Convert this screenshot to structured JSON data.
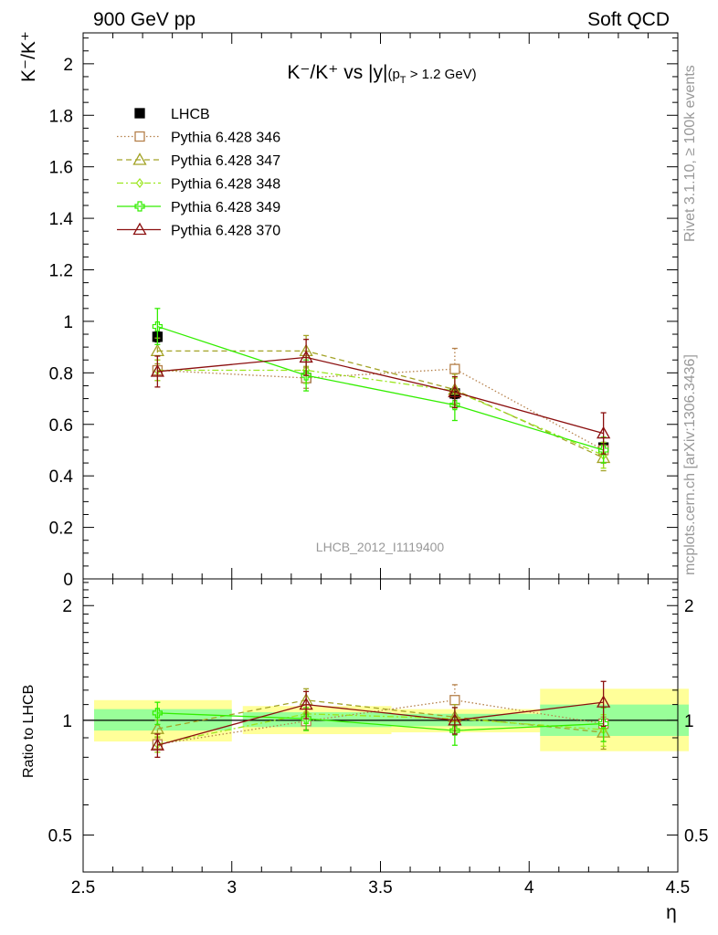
{
  "header": {
    "left": "900 GeV pp",
    "right": "Soft QCD"
  },
  "side_labels": {
    "rivet": "Rivet 3.1.10, ≥ 100k events",
    "source": "mcplots.cern.ch [arXiv:1306.3436]"
  },
  "chart_data": [
    {
      "type": "line",
      "panel": "main",
      "title_main": "K⁻/K⁺ vs |y|",
      "title_cut": "(p",
      "title_cut_sub": "T",
      "title_cut_rest": " > 1.2 GeV)",
      "ylabel": "K⁻/K⁺",
      "xlabel": "η",
      "analysis_tag": "LHCB_2012_I1119400",
      "xlim": [
        2.5,
        4.5
      ],
      "ylim": [
        0,
        2.12
      ],
      "y_ticks": [
        "0",
        "0.2",
        "0.4",
        "0.6",
        "0.8",
        "1",
        "1.2",
        "1.4",
        "1.6",
        "1.8",
        "2"
      ],
      "x": [
        2.75,
        3.25,
        3.75,
        4.25
      ],
      "x_edges": [
        [
          2.5,
          3.0
        ],
        [
          3.0,
          3.5
        ],
        [
          3.5,
          4.0
        ],
        [
          4.0,
          4.5
        ]
      ],
      "series": [
        {
          "name": "LHCB",
          "color": "#000000",
          "style": "data",
          "marker": "filled-square",
          "values": [
            0.94,
            0.78,
            0.72,
            0.51
          ],
          "errors": [
            0.02,
            0.02,
            0.02,
            0.02
          ]
        },
        {
          "name": "Pythia 6.428 346",
          "color": "#b5804a",
          "style": "dotted",
          "marker": "open-square",
          "values": [
            0.81,
            0.78,
            0.815,
            0.5
          ],
          "errors": [
            0.04,
            0.04,
            0.08,
            0.05
          ]
        },
        {
          "name": "Pythia 6.428 347",
          "color": "#a3a327",
          "style": "dashed",
          "marker": "open-triangle",
          "values": [
            0.885,
            0.885,
            0.735,
            0.47
          ],
          "errors": [
            0.05,
            0.06,
            0.06,
            0.05
          ]
        },
        {
          "name": "Pythia 6.428 348",
          "color": "#9be61e",
          "style": "dashdot",
          "marker": "open-diamond",
          "values": [
            0.81,
            0.81,
            0.73,
            0.48
          ],
          "errors": [
            0.04,
            0.05,
            0.05,
            0.05
          ]
        },
        {
          "name": "Pythia 6.428 349",
          "color": "#33ee00",
          "style": "solid",
          "marker": "open-cross",
          "values": [
            0.98,
            0.79,
            0.675,
            0.5
          ],
          "errors": [
            0.07,
            0.06,
            0.06,
            0.05
          ]
        },
        {
          "name": "Pythia 6.428 370",
          "color": "#8b0f0f",
          "style": "solid",
          "marker": "open-triangle",
          "values": [
            0.805,
            0.86,
            0.725,
            0.565
          ],
          "errors": [
            0.06,
            0.07,
            0.06,
            0.08
          ]
        }
      ]
    },
    {
      "type": "line",
      "panel": "ratio",
      "ylabel": "Ratio to LHCB",
      "xlabel": "η",
      "xlim": [
        2.5,
        4.5
      ],
      "ylim": [
        0.4,
        2.35
      ],
      "y_scale": "log",
      "y_ticks": [
        "0.5",
        "1",
        "2"
      ],
      "x_ticks": [
        "2.5",
        "3",
        "3.5",
        "4",
        "4.5"
      ],
      "x": [
        2.75,
        3.25,
        3.75,
        4.25
      ],
      "x_edges": [
        [
          2.5,
          3.0
        ],
        [
          3.0,
          3.5
        ],
        [
          3.5,
          4.0
        ],
        [
          4.0,
          4.5
        ]
      ],
      "band_inner": [
        [
          0.94,
          1.07
        ],
        [
          0.96,
          1.05
        ],
        [
          0.965,
          1.04
        ],
        [
          0.91,
          1.1
        ]
      ],
      "band_outer": [
        [
          0.88,
          1.13
        ],
        [
          0.92,
          1.09
        ],
        [
          0.93,
          1.07
        ],
        [
          0.83,
          1.21
        ]
      ],
      "band_inner_color": "#99ff99",
      "band_outer_color": "#ffff99",
      "series": [
        {
          "name": "Pythia 6.428 346",
          "color": "#b5804a",
          "style": "dotted",
          "marker": "open-square",
          "values": [
            0.865,
            0.995,
            1.13,
            0.98
          ],
          "errors": [
            0.04,
            0.05,
            0.11,
            0.1
          ]
        },
        {
          "name": "Pythia 6.428 347",
          "color": "#a3a327",
          "style": "dashed",
          "marker": "open-triangle",
          "values": [
            0.95,
            1.13,
            1.02,
            0.93
          ],
          "errors": [
            0.05,
            0.08,
            0.08,
            0.09
          ]
        },
        {
          "name": "Pythia 6.428 348",
          "color": "#9be61e",
          "style": "dashdot",
          "marker": "open-diamond",
          "values": [
            0.865,
            1.04,
            1.01,
            0.945
          ],
          "errors": [
            0.04,
            0.06,
            0.07,
            0.09
          ]
        },
        {
          "name": "Pythia 6.428 349",
          "color": "#33ee00",
          "style": "solid",
          "marker": "open-cross",
          "values": [
            1.045,
            1.01,
            0.94,
            0.98
          ],
          "errors": [
            0.07,
            0.07,
            0.08,
            0.1
          ]
        },
        {
          "name": "Pythia 6.428 370",
          "color": "#8b0f0f",
          "style": "solid",
          "marker": "open-triangle",
          "values": [
            0.86,
            1.1,
            1.0,
            1.115
          ],
          "errors": [
            0.06,
            0.09,
            0.08,
            0.15
          ]
        }
      ]
    }
  ]
}
